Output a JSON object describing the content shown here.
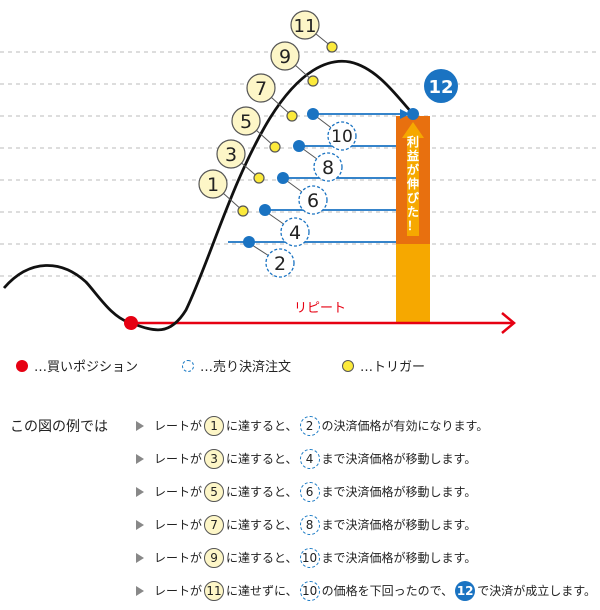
{
  "diagram": {
    "repeat_label": "リピート",
    "profit_label": "利益が伸びた！",
    "triggers": [
      "1",
      "3",
      "5",
      "7",
      "9",
      "11"
    ],
    "orders": [
      "2",
      "4",
      "6",
      "8",
      "10"
    ],
    "final_label": "12"
  },
  "legend": {
    "buy_position": "…買いポジション",
    "sell_order": "…売り決済注文",
    "trigger": "…トリガー"
  },
  "example_label": "この図の例では",
  "steps": [
    {
      "pre": "レートが",
      "trigger": "1",
      "mid": "に達すると、",
      "order": "2",
      "post": "の決済価格が有効になります。"
    },
    {
      "pre": "レートが",
      "trigger": "3",
      "mid": "に達すると、",
      "order": "4",
      "post": "まで決済価格が移動します。"
    },
    {
      "pre": "レートが",
      "trigger": "5",
      "mid": "に達すると、",
      "order": "6",
      "post": "まで決済価格が移動します。"
    },
    {
      "pre": "レートが",
      "trigger": "7",
      "mid": "に達すると、",
      "order": "8",
      "post": "まで決済価格が移動します。"
    },
    {
      "pre": "レートが",
      "trigger": "9",
      "mid": "に達すると、",
      "order": "10",
      "post": "まで決済価格が移動します。"
    }
  ],
  "final_step": {
    "pre": "レートが",
    "trigger": "11",
    "mid": "に達せずに、",
    "order": "10",
    "mid2": "の価格を下回ったので、",
    "final": "12",
    "post": "で決済が成立します。"
  },
  "colors": {
    "curve": "#111111",
    "buy": "#e60012",
    "line_blue": "#1a73c2",
    "trigger_fill": "#fdf6c7",
    "bar_top": "#e8700f",
    "bar_bottom": "#f6a800",
    "arrow_red": "#e60012"
  }
}
